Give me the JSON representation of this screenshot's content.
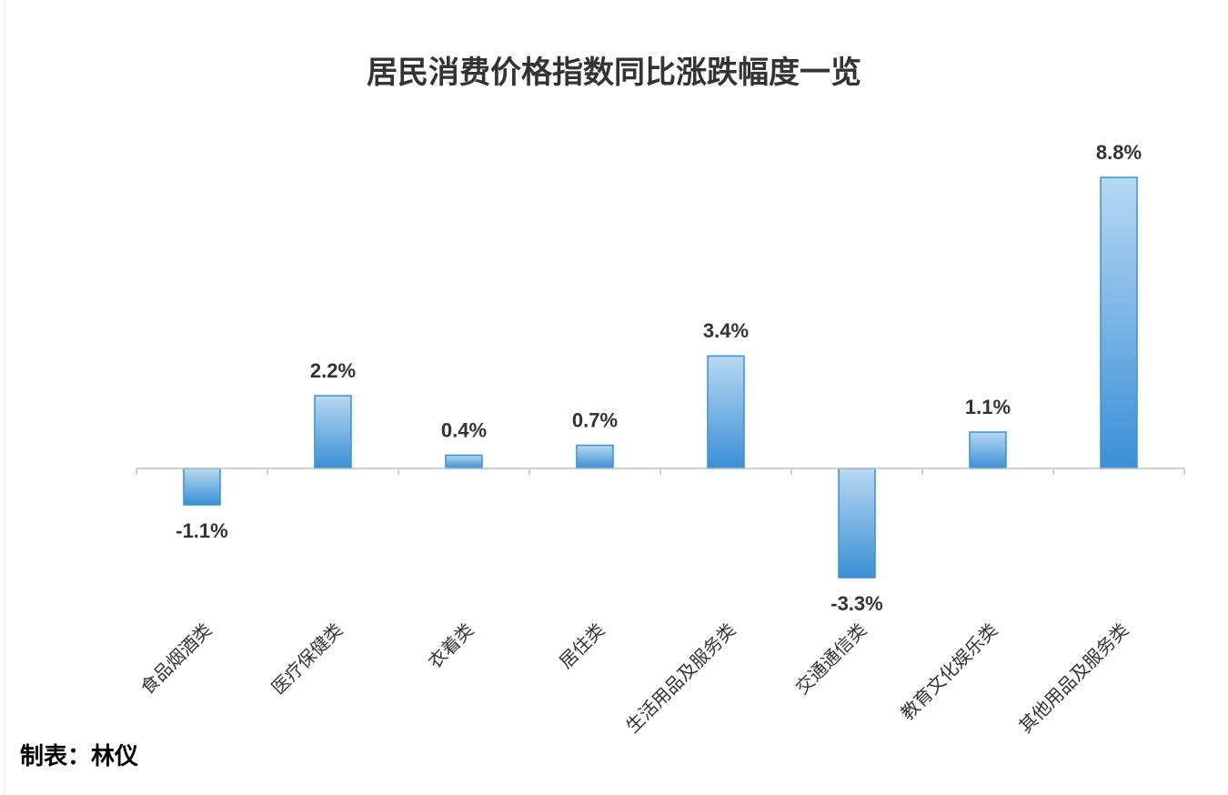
{
  "chart_data": {
    "type": "bar",
    "title": "居民消费价格指数同比涨跌幅度一览",
    "categories": [
      "食品烟酒类",
      "医疗保健类",
      "衣着类",
      "居住类",
      "生活用品及服务类",
      "交通通信类",
      "教育文化娱乐类",
      "其他用品及服务类"
    ],
    "values": [
      -1.1,
      2.2,
      0.4,
      0.7,
      3.4,
      -3.3,
      1.1,
      8.8
    ],
    "value_labels": [
      "-1.1%",
      "2.2%",
      "0.4%",
      "0.7%",
      "3.4%",
      "-3.3%",
      "1.1%",
      "8.8%"
    ],
    "color": "#3a8fd6",
    "note": "制表：林仪"
  }
}
